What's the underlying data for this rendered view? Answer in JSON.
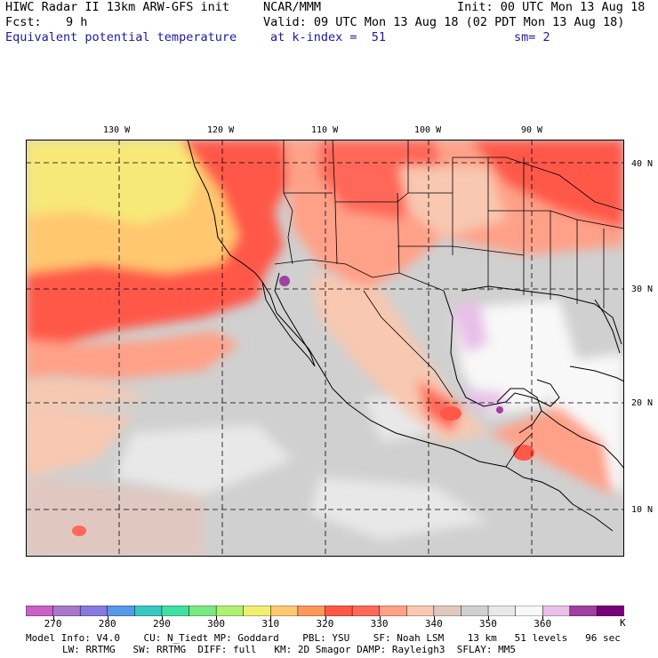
{
  "header": {
    "title": "HIWC Radar II 13km ARW-GFS init",
    "org": "NCAR/MMM",
    "init": "Init: 00 UTC Mon 13 Aug 18",
    "fcst_label": "Fcst:",
    "fcst_value": "9 h",
    "valid": "Valid: 09 UTC Mon 13 Aug 18 (02 PDT Mon 13 Aug 18)",
    "field": "Equivalent potential temperature",
    "level": "at k-index =  51",
    "smooth": "sm= 2"
  },
  "map": {
    "lon_labels": [
      "130 W",
      "120 W",
      "110 W",
      "100 W",
      "90 W"
    ],
    "lat_labels": [
      "40 N",
      "30 N",
      "20 N",
      "10 N"
    ]
  },
  "colorbar": {
    "units": "K",
    "tick_labels": [
      "270",
      "280",
      "290",
      "300",
      "310",
      "320",
      "330",
      "340",
      "350",
      "360"
    ],
    "colors": [
      "#c860c8",
      "#a878c8",
      "#8878e0",
      "#5898e8",
      "#38c8c0",
      "#40e0a0",
      "#78e880",
      "#b0f070",
      "#f0f070",
      "#ffc870",
      "#ff9858",
      "#ff5848",
      "#ff6858",
      "#ffa088",
      "#f8c8b0",
      "#e0c8c0",
      "#d0d0d0",
      "#e8e8e8",
      "#f8f8f8",
      "#e8c0e8",
      "#a040a0",
      "#780078"
    ]
  },
  "footer": {
    "line1": "Model Info: V4.0    CU: N_Tiedt MP: Goddard    PBL: YSU    SF: Noah LSM    13 km   51 levels   96 sec",
    "line2": "LW: RRTMG   SW: RRTMG  DIFF: full   KM: 2D Smagor DAMP: Rayleigh3  SFLAY: MM5"
  }
}
